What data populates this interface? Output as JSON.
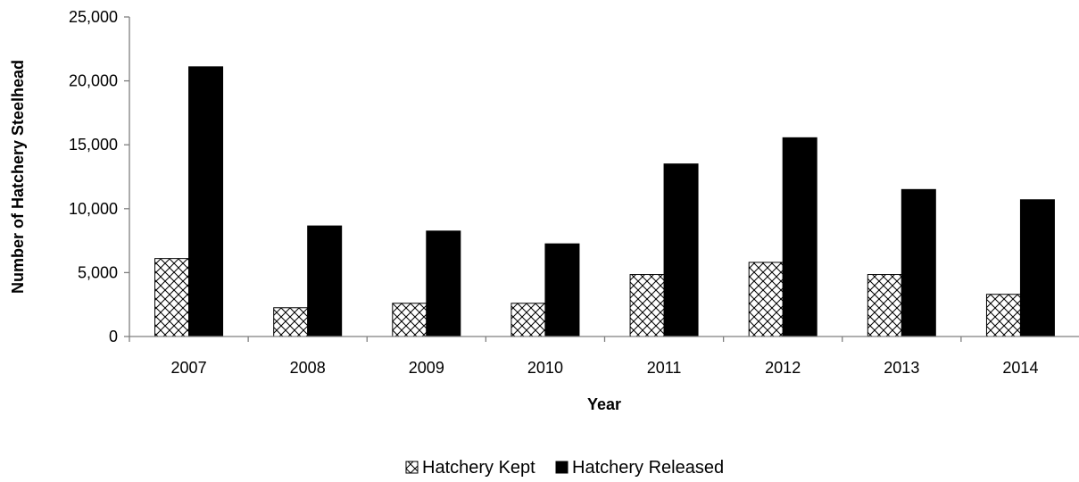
{
  "chart_data": {
    "type": "bar",
    "title": "",
    "xlabel": "Year",
    "ylabel": "Number of Hatchery Steelhead",
    "categories": [
      "2007",
      "2008",
      "2009",
      "2010",
      "2011",
      "2012",
      "2013",
      "2014"
    ],
    "series": [
      {
        "name": "Hatchery Kept",
        "values": [
          6100,
          2250,
          2600,
          2600,
          4850,
          5800,
          4850,
          3300
        ],
        "color": "#ffffff",
        "pattern": "crosshatch"
      },
      {
        "name": "Hatchery Released",
        "values": [
          21100,
          8650,
          8250,
          7250,
          13500,
          15550,
          11500,
          10700
        ],
        "color": "#000000"
      }
    ],
    "ylim": [
      0,
      25000
    ],
    "yticks": [
      0,
      5000,
      10000,
      15000,
      20000,
      25000
    ],
    "ytick_labels": [
      "0",
      "5,000",
      "10,000",
      "15,000",
      "20,000",
      "25,000"
    ],
    "grid": false,
    "legend_position": "bottom"
  }
}
